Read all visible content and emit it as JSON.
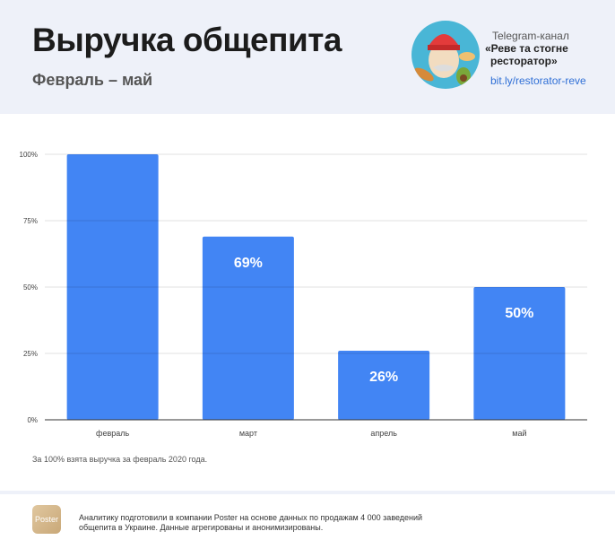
{
  "header": {
    "title": "Выручка общепита",
    "subtitle": "Февраль – май",
    "telegram": {
      "label": "Telegram-канал",
      "name_line1": "«Реве та стогне",
      "name_line2": "ресторатор»",
      "link": "bit.ly/restorator-reve"
    }
  },
  "chart_data": {
    "type": "bar",
    "categories": [
      "февраль",
      "март",
      "апрель",
      "май"
    ],
    "values": [
      100,
      69,
      26,
      50
    ],
    "data_labels": [
      "",
      "69%",
      "26%",
      "50%"
    ],
    "yticks": [
      "0%",
      "25%",
      "50%",
      "75%",
      "100%"
    ],
    "ylim": [
      0,
      100
    ],
    "grid": true,
    "bar_color": "#4285f4"
  },
  "note": "За 100% взята выручка за февраль 2020 года.",
  "footer": {
    "logo": "Poster",
    "text": "Аналитику подготовили в компании Poster на основе данных по продажам 4 000 заведений общепита в Украине. Данные агрегированы и анонимизированы."
  }
}
